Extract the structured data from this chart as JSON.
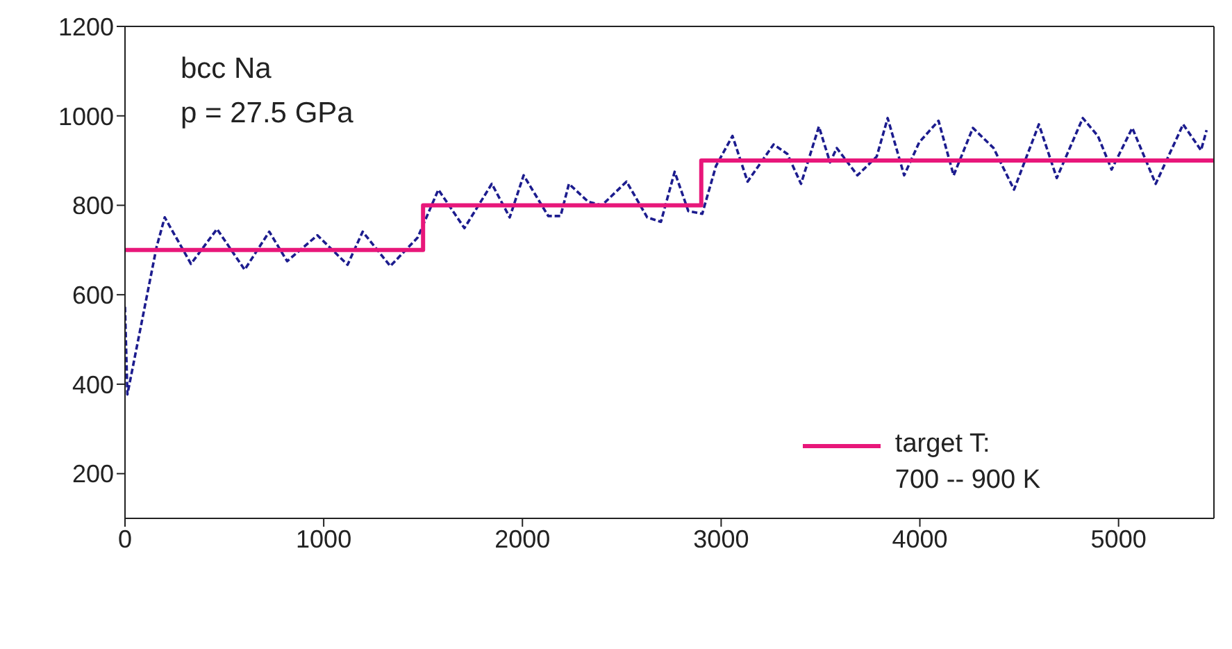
{
  "chart_data": {
    "type": "line",
    "annotations": [
      "bcc Na",
      "p = 27.5 GPa"
    ],
    "xlim": [
      0,
      5480
    ],
    "xticks": [
      0,
      1000,
      2000,
      3000,
      4000,
      5000
    ],
    "ylim": [
      100,
      1200
    ],
    "yticks": [
      200,
      400,
      600,
      800,
      1000,
      1200
    ],
    "legend": "bottom right",
    "series": [
      {
        "color": "#1c1c8e",
        "line_style": "dashed",
        "x": [
          0,
          12,
          159,
          200,
          332,
          463,
          602,
          726,
          816,
          968,
          1120,
          1196,
          1335,
          1473,
          1577,
          1708,
          1846,
          1936,
          2006,
          2130,
          2192,
          2234,
          2331,
          2400,
          2524,
          2628,
          2697,
          2766,
          2835,
          2905,
          2974,
          3057,
          3133,
          3264,
          3333,
          3402,
          3492,
          3548,
          3582,
          3686,
          3783,
          3838,
          3921,
          3997,
          4094,
          4170,
          4267,
          4371,
          4474,
          4599,
          4689,
          4820,
          4896,
          4965,
          5069,
          5187,
          5325,
          5415,
          5443
        ],
        "values": [
          573,
          377,
          707,
          773,
          669,
          747,
          656,
          741,
          675,
          733,
          667,
          741,
          664,
          728,
          835,
          749,
          848,
          773,
          867,
          776,
          776,
          848,
          808,
          800,
          853,
          773,
          763,
          875,
          787,
          781,
          888,
          955,
          853,
          936,
          915,
          848,
          976,
          896,
          928,
          867,
          909,
          995,
          867,
          941,
          989,
          867,
          973,
          928,
          835,
          981,
          861,
          995,
          955,
          880,
          973,
          848,
          981,
          923,
          968
        ]
      },
      {
        "type": "step",
        "name": "target T:\n700 -- 900 K",
        "color": "#e8177a",
        "line_style": "solid",
        "x": [
          0,
          1500,
          2900,
          5480
        ],
        "values": [
          700,
          800,
          900,
          900
        ]
      }
    ]
  }
}
